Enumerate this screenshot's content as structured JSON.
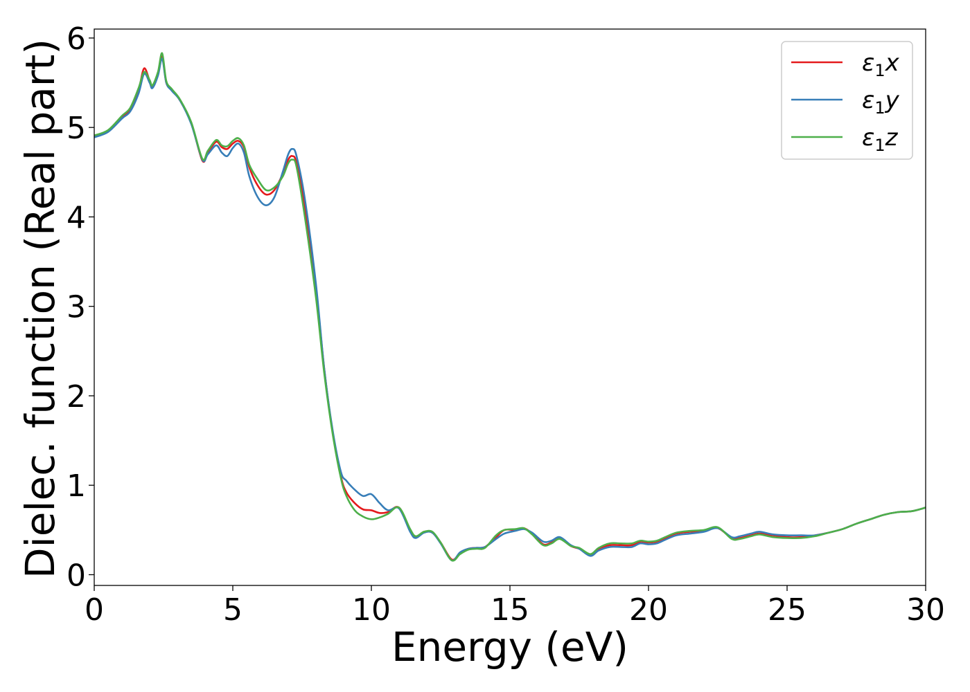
{
  "chart_data": {
    "type": "line",
    "title": "",
    "xlabel": "Energy (eV)",
    "ylabel": "Dielec. function (Real part)",
    "xlim": [
      0,
      30
    ],
    "ylim": [
      -0.12,
      6.1
    ],
    "xticks": [
      0,
      5,
      10,
      15,
      20,
      25,
      30
    ],
    "xtick_labels": [
      "0",
      "5",
      "10",
      "15",
      "20",
      "25",
      "30"
    ],
    "yticks": [
      0,
      1,
      2,
      3,
      4,
      5,
      6
    ],
    "ytick_labels": [
      "0",
      "1",
      "2",
      "3",
      "4",
      "5",
      "6"
    ],
    "grid": false,
    "legend_position": "top-right",
    "series": [
      {
        "name": "ε1x",
        "legend_base": "ε",
        "legend_sub": "1",
        "legend_suffix": "x",
        "color": "#e41a1c",
        "x": [
          0,
          0.5,
          1.0,
          1.3,
          1.6,
          1.8,
          2.0,
          2.1,
          2.3,
          2.45,
          2.6,
          2.8,
          3.1,
          3.5,
          3.9,
          4.1,
          4.4,
          4.6,
          4.8,
          5.0,
          5.2,
          5.4,
          5.6,
          5.9,
          6.2,
          6.5,
          6.8,
          7.0,
          7.15,
          7.3,
          7.6,
          8.0,
          8.3,
          8.6,
          8.9,
          9.1,
          9.4,
          9.7,
          10.0,
          10.3,
          10.6,
          11.0,
          11.4,
          11.6,
          11.9,
          12.2,
          12.5,
          12.9,
          13.2,
          13.5,
          13.8,
          14.1,
          14.5,
          14.8,
          15.2,
          15.5,
          15.8,
          16.2,
          16.5,
          16.8,
          17.2,
          17.5,
          17.9,
          18.2,
          18.6,
          19.0,
          19.4,
          19.7,
          20.0,
          20.3,
          20.6,
          21.0,
          21.5,
          22.0,
          22.5,
          23.0,
          23.3,
          23.7,
          24.0,
          24.5,
          25.0,
          25.5,
          26.0,
          26.5,
          27.0,
          27.5,
          28.0,
          28.5,
          29.0,
          29.5,
          30.0
        ],
        "y": [
          4.9,
          4.96,
          5.12,
          5.2,
          5.42,
          5.66,
          5.52,
          5.46,
          5.6,
          5.8,
          5.5,
          5.42,
          5.3,
          5.05,
          4.63,
          4.72,
          4.84,
          4.78,
          4.76,
          4.82,
          4.85,
          4.78,
          4.55,
          4.35,
          4.25,
          4.3,
          4.48,
          4.64,
          4.68,
          4.6,
          4.1,
          3.2,
          2.3,
          1.6,
          1.1,
          0.92,
          0.8,
          0.73,
          0.72,
          0.69,
          0.7,
          0.75,
          0.5,
          0.42,
          0.48,
          0.47,
          0.36,
          0.17,
          0.24,
          0.29,
          0.3,
          0.31,
          0.42,
          0.5,
          0.5,
          0.52,
          0.46,
          0.34,
          0.36,
          0.41,
          0.32,
          0.29,
          0.22,
          0.29,
          0.33,
          0.33,
          0.33,
          0.37,
          0.36,
          0.37,
          0.41,
          0.46,
          0.48,
          0.49,
          0.52,
          0.41,
          0.41,
          0.44,
          0.46,
          0.44,
          0.42,
          0.42,
          0.44,
          0.47,
          0.51,
          0.57,
          0.62,
          0.67,
          0.7,
          0.71,
          0.75
        ]
      },
      {
        "name": "ε1y",
        "legend_base": "ε",
        "legend_sub": "1",
        "legend_suffix": "y",
        "color": "#377eb8",
        "x": [
          0,
          0.5,
          1.0,
          1.3,
          1.6,
          1.8,
          2.0,
          2.1,
          2.3,
          2.45,
          2.6,
          2.8,
          3.1,
          3.5,
          3.9,
          4.1,
          4.4,
          4.6,
          4.8,
          5.0,
          5.2,
          5.4,
          5.6,
          5.9,
          6.2,
          6.5,
          6.8,
          7.0,
          7.15,
          7.3,
          7.6,
          8.0,
          8.3,
          8.6,
          8.9,
          9.1,
          9.4,
          9.7,
          10.0,
          10.3,
          10.6,
          11.0,
          11.4,
          11.6,
          11.9,
          12.2,
          12.5,
          12.9,
          13.2,
          13.5,
          13.8,
          14.1,
          14.5,
          14.8,
          15.2,
          15.5,
          15.8,
          16.2,
          16.5,
          16.8,
          17.2,
          17.5,
          17.9,
          18.2,
          18.6,
          19.0,
          19.4,
          19.7,
          20.0,
          20.3,
          20.6,
          21.0,
          21.5,
          22.0,
          22.5,
          23.0,
          23.3,
          23.7,
          24.0,
          24.5,
          25.0,
          25.5,
          26.0,
          26.5,
          27.0,
          27.5,
          28.0,
          28.5,
          29.0,
          29.5,
          30.0
        ],
        "y": [
          4.89,
          4.95,
          5.1,
          5.18,
          5.38,
          5.6,
          5.5,
          5.44,
          5.58,
          5.77,
          5.5,
          5.41,
          5.3,
          5.04,
          4.64,
          4.7,
          4.8,
          4.72,
          4.68,
          4.77,
          4.82,
          4.72,
          4.45,
          4.22,
          4.13,
          4.22,
          4.5,
          4.7,
          4.76,
          4.68,
          4.2,
          3.25,
          2.3,
          1.62,
          1.15,
          1.05,
          0.95,
          0.88,
          0.9,
          0.8,
          0.72,
          0.74,
          0.48,
          0.41,
          0.47,
          0.47,
          0.35,
          0.16,
          0.25,
          0.29,
          0.3,
          0.31,
          0.4,
          0.46,
          0.49,
          0.51,
          0.47,
          0.37,
          0.38,
          0.42,
          0.33,
          0.29,
          0.21,
          0.27,
          0.31,
          0.31,
          0.31,
          0.35,
          0.34,
          0.35,
          0.39,
          0.44,
          0.46,
          0.48,
          0.52,
          0.42,
          0.43,
          0.46,
          0.48,
          0.45,
          0.44,
          0.44,
          0.44,
          0.47,
          0.51,
          0.57,
          0.62,
          0.67,
          0.7,
          0.71,
          0.75
        ]
      },
      {
        "name": "ε1z",
        "legend_base": "ε",
        "legend_sub": "1",
        "legend_suffix": "z",
        "color": "#4daf4a",
        "x": [
          0,
          0.5,
          1.0,
          1.3,
          1.6,
          1.8,
          2.0,
          2.1,
          2.3,
          2.45,
          2.6,
          2.8,
          3.1,
          3.5,
          3.9,
          4.1,
          4.4,
          4.6,
          4.8,
          5.0,
          5.2,
          5.4,
          5.6,
          5.9,
          6.2,
          6.5,
          6.8,
          7.0,
          7.15,
          7.3,
          7.6,
          8.0,
          8.3,
          8.6,
          8.9,
          9.1,
          9.4,
          9.7,
          10.0,
          10.3,
          10.6,
          11.0,
          11.4,
          11.6,
          11.9,
          12.2,
          12.5,
          12.9,
          13.2,
          13.5,
          13.8,
          14.1,
          14.5,
          14.8,
          15.2,
          15.5,
          15.8,
          16.2,
          16.5,
          16.8,
          17.2,
          17.5,
          17.9,
          18.2,
          18.6,
          19.0,
          19.4,
          19.7,
          20.0,
          20.3,
          20.6,
          21.0,
          21.5,
          22.0,
          22.5,
          23.0,
          23.3,
          23.7,
          24.0,
          24.5,
          25.0,
          25.5,
          26.0,
          26.5,
          27.0,
          27.5,
          28.0,
          28.5,
          29.0,
          29.5,
          30.0
        ],
        "y": [
          4.91,
          4.97,
          5.13,
          5.22,
          5.44,
          5.62,
          5.53,
          5.47,
          5.62,
          5.83,
          5.52,
          5.43,
          5.31,
          5.06,
          4.65,
          4.74,
          4.86,
          4.8,
          4.79,
          4.85,
          4.88,
          4.8,
          4.58,
          4.42,
          4.3,
          4.33,
          4.45,
          4.6,
          4.64,
          4.56,
          4.0,
          3.1,
          2.25,
          1.58,
          1.08,
          0.88,
          0.72,
          0.65,
          0.62,
          0.64,
          0.68,
          0.75,
          0.51,
          0.43,
          0.48,
          0.48,
          0.36,
          0.16,
          0.23,
          0.28,
          0.29,
          0.3,
          0.44,
          0.5,
          0.51,
          0.52,
          0.45,
          0.33,
          0.35,
          0.4,
          0.32,
          0.3,
          0.23,
          0.3,
          0.35,
          0.35,
          0.35,
          0.38,
          0.37,
          0.38,
          0.42,
          0.47,
          0.49,
          0.5,
          0.53,
          0.4,
          0.4,
          0.43,
          0.45,
          0.42,
          0.41,
          0.41,
          0.43,
          0.47,
          0.51,
          0.57,
          0.62,
          0.67,
          0.7,
          0.71,
          0.75
        ]
      }
    ]
  }
}
